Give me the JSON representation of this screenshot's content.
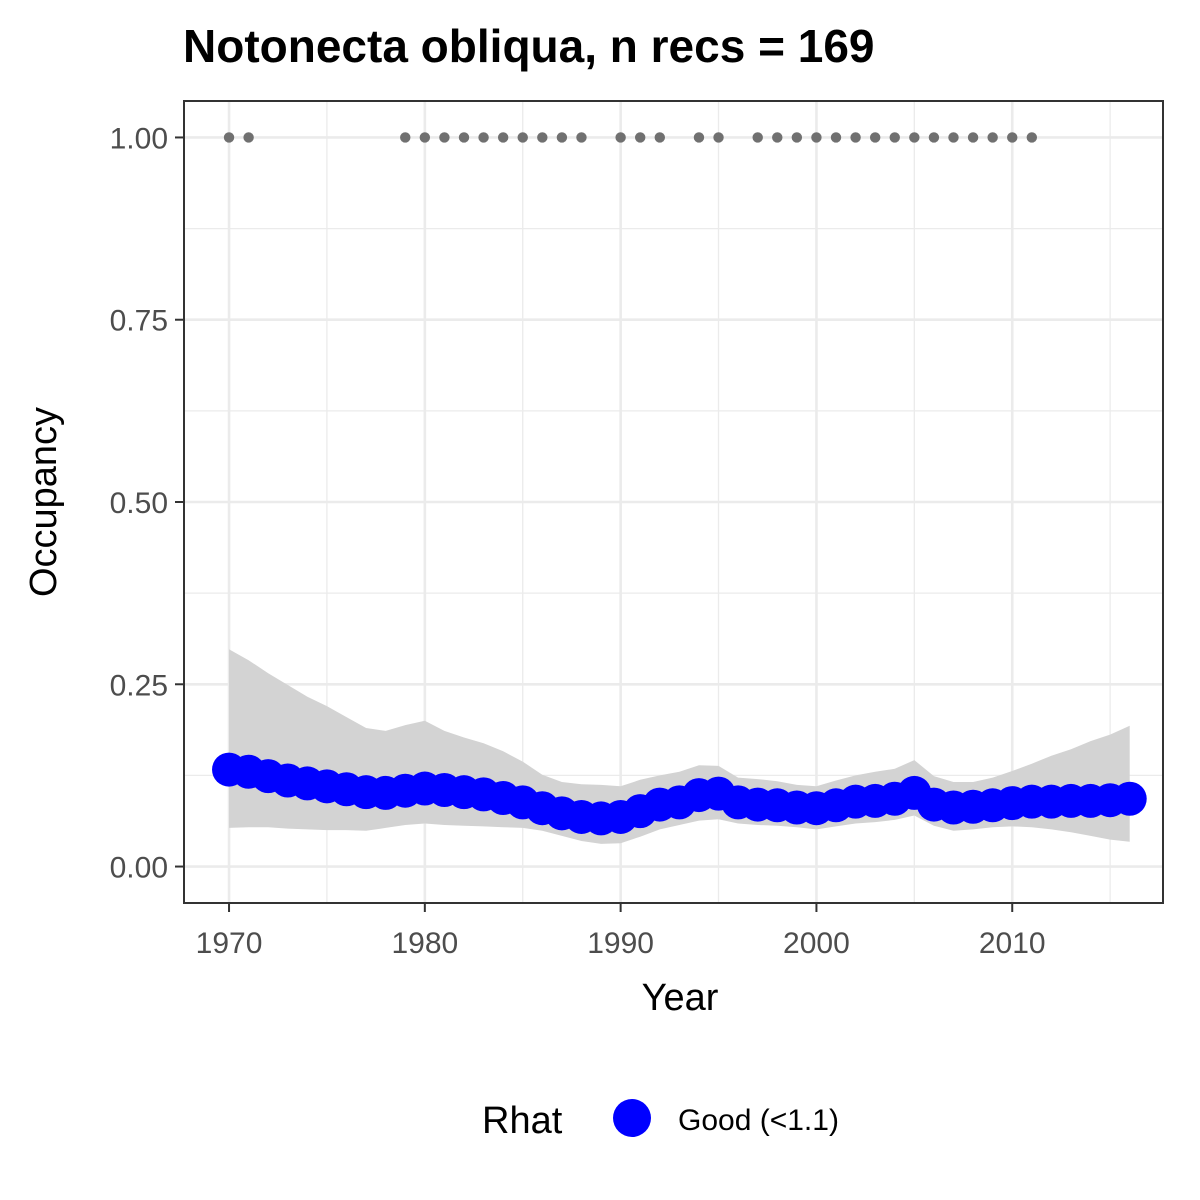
{
  "chart_data": {
    "type": "line",
    "title": "Notonecta obliqua, n recs = 169",
    "xlabel": "Year",
    "ylabel": "Occupancy",
    "xlim": [
      1967.7,
      2017.7
    ],
    "ylim": [
      -0.05,
      1.05
    ],
    "x_ticks": [
      1970,
      1980,
      1990,
      2000,
      2010
    ],
    "x_minor_ticks": [
      1975,
      1985,
      1995,
      2005,
      2015
    ],
    "y_ticks": [
      0.0,
      0.25,
      0.5,
      0.75,
      1.0
    ],
    "y_tick_labels": [
      "0.00",
      "0.25",
      "0.50",
      "0.75",
      "1.00"
    ],
    "y_minor_ticks": [
      0.125,
      0.375,
      0.625,
      0.875
    ],
    "grid": true,
    "legend": {
      "title": "Rhat",
      "placement": "bottom",
      "entries": [
        {
          "label": "Good (<1.1)",
          "color": "#0000ff"
        }
      ]
    },
    "colors": {
      "point": "#0000ff",
      "ribbon": "#d3d3d3",
      "record": "#707070",
      "grid": "#ebebeb",
      "panel_border": "#333333"
    },
    "series": [
      {
        "name": "Good (<1.1)",
        "x": [
          1970,
          1971,
          1972,
          1973,
          1974,
          1975,
          1976,
          1977,
          1978,
          1979,
          1980,
          1981,
          1982,
          1983,
          1984,
          1985,
          1986,
          1987,
          1988,
          1989,
          1990,
          1991,
          1992,
          1993,
          1994,
          1995,
          1996,
          1997,
          1998,
          1999,
          2000,
          2001,
          2002,
          2003,
          2004,
          2005,
          2006,
          2007,
          2008,
          2009,
          2010,
          2011,
          2012,
          2013,
          2014,
          2015,
          2016
        ],
        "y": [
          0.133,
          0.13,
          0.124,
          0.118,
          0.114,
          0.11,
          0.106,
          0.102,
          0.101,
          0.104,
          0.107,
          0.105,
          0.102,
          0.099,
          0.094,
          0.088,
          0.08,
          0.073,
          0.068,
          0.066,
          0.068,
          0.076,
          0.085,
          0.088,
          0.098,
          0.1,
          0.088,
          0.085,
          0.084,
          0.081,
          0.08,
          0.084,
          0.089,
          0.09,
          0.093,
          0.101,
          0.085,
          0.081,
          0.082,
          0.084,
          0.087,
          0.089,
          0.089,
          0.09,
          0.09,
          0.091,
          0.093
        ],
        "lower": [
          0.053,
          0.054,
          0.054,
          0.052,
          0.051,
          0.05,
          0.05,
          0.049,
          0.053,
          0.057,
          0.059,
          0.057,
          0.056,
          0.055,
          0.054,
          0.053,
          0.049,
          0.042,
          0.035,
          0.031,
          0.032,
          0.041,
          0.051,
          0.057,
          0.063,
          0.065,
          0.059,
          0.057,
          0.056,
          0.054,
          0.051,
          0.055,
          0.059,
          0.061,
          0.064,
          0.07,
          0.056,
          0.049,
          0.051,
          0.054,
          0.055,
          0.054,
          0.051,
          0.047,
          0.042,
          0.037,
          0.034
        ],
        "upper": [
          0.298,
          0.283,
          0.265,
          0.249,
          0.233,
          0.22,
          0.205,
          0.19,
          0.186,
          0.194,
          0.2,
          0.186,
          0.177,
          0.169,
          0.158,
          0.144,
          0.126,
          0.116,
          0.113,
          0.112,
          0.11,
          0.119,
          0.125,
          0.13,
          0.139,
          0.138,
          0.122,
          0.12,
          0.117,
          0.112,
          0.11,
          0.118,
          0.125,
          0.13,
          0.134,
          0.146,
          0.124,
          0.116,
          0.116,
          0.122,
          0.131,
          0.141,
          0.152,
          0.161,
          0.172,
          0.181,
          0.193
        ]
      }
    ],
    "records": {
      "y": 1.0,
      "x": [
        1970,
        1971,
        1979,
        1980,
        1981,
        1982,
        1983,
        1984,
        1985,
        1986,
        1987,
        1988,
        1990,
        1991,
        1992,
        1994,
        1995,
        1997,
        1998,
        1999,
        2000,
        2001,
        2002,
        2003,
        2004,
        2005,
        2006,
        2007,
        2008,
        2009,
        2010,
        2011
      ]
    }
  }
}
